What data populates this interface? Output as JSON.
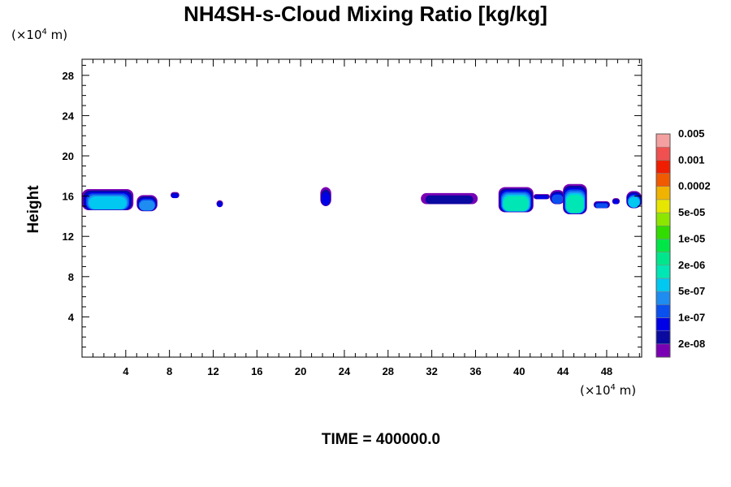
{
  "chart_data": {
    "type": "heatmap",
    "title": "NH4SH-s-Cloud Mixing Ratio [kg/kg]",
    "ylabel": "Height",
    "xlabel": "",
    "x_unit": {
      "prefix": "(×10",
      "exp": "4",
      "suffix": " m)"
    },
    "y_unit": {
      "prefix": "(×10",
      "exp": "4",
      "suffix": " m)"
    },
    "xlim": [
      0,
      51.2
    ],
    "ylim": [
      0,
      29.6
    ],
    "x_ticks": [
      4,
      8,
      12,
      16,
      20,
      24,
      28,
      32,
      36,
      40,
      44,
      48
    ],
    "x_tick_labels": [
      "4",
      "8",
      "12",
      "16",
      "20",
      "24",
      "28",
      "32",
      "36",
      "40",
      "44",
      "48"
    ],
    "y_ticks": [
      4,
      8,
      12,
      16,
      20,
      24,
      28
    ],
    "y_tick_labels": [
      "4",
      "8",
      "12",
      "16",
      "20",
      "24",
      "28"
    ],
    "colorbar": {
      "colors": [
        "#7a00b4",
        "#0a0aa0",
        "#0000e6",
        "#0a50ee",
        "#1e8cf0",
        "#00c8f0",
        "#00e6b4",
        "#00e68c",
        "#00e646",
        "#32dc00",
        "#8ce600",
        "#e6e600",
        "#f0b400",
        "#f05a00",
        "#f01e00",
        "#f05050",
        "#f4a0a0"
      ],
      "labels": [
        "2e-08",
        "1e-07",
        "5e-07",
        "2e-06",
        "1e-05",
        "5e-05",
        "0.0002",
        "0.001",
        "0.005"
      ]
    },
    "clouds": [
      {
        "x0": 0.0,
        "x1": 4.7,
        "top": 16.7,
        "bottom": 14.6,
        "core": 4
      },
      {
        "x0": 5.0,
        "x1": 6.9,
        "top": 16.1,
        "bottom": 14.5,
        "core": 3
      },
      {
        "x0": 8.1,
        "x1": 8.9,
        "top": 16.4,
        "bottom": 15.8,
        "core": 1
      },
      {
        "x0": 12.3,
        "x1": 12.9,
        "top": 15.6,
        "bottom": 14.9,
        "core": 1
      },
      {
        "x0": 21.8,
        "x1": 22.8,
        "top": 16.9,
        "bottom": 15.0,
        "core": 1
      },
      {
        "x0": 31.0,
        "x1": 36.2,
        "top": 16.3,
        "bottom": 15.2,
        "core": 0
      },
      {
        "x0": 38.1,
        "x1": 41.3,
        "top": 16.9,
        "bottom": 14.4,
        "core": 5
      },
      {
        "x0": 41.3,
        "x1": 42.8,
        "top": 16.2,
        "bottom": 15.7,
        "core": 1
      },
      {
        "x0": 42.8,
        "x1": 44.2,
        "top": 16.6,
        "bottom": 15.2,
        "core": 2
      },
      {
        "x0": 44.0,
        "x1": 46.2,
        "top": 17.2,
        "bottom": 14.2,
        "core": 5
      },
      {
        "x0": 46.8,
        "x1": 48.3,
        "top": 15.5,
        "bottom": 14.8,
        "core": 2
      },
      {
        "x0": 48.5,
        "x1": 49.2,
        "top": 15.8,
        "bottom": 15.2,
        "core": 1
      },
      {
        "x0": 49.8,
        "x1": 51.2,
        "top": 16.5,
        "bottom": 14.8,
        "core": 4
      }
    ]
  },
  "time_label": "TIME = 400000.0"
}
